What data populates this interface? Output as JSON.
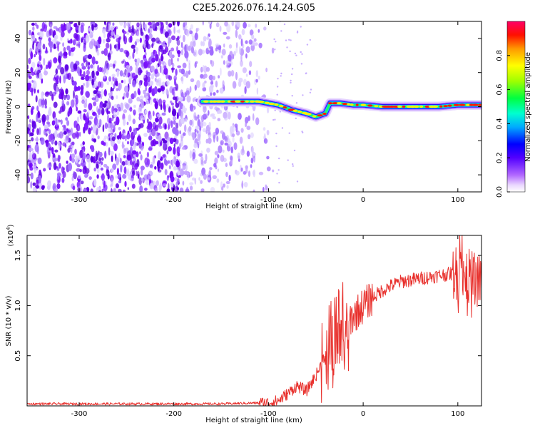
{
  "figure_title": "C2E5.2026.076.14.24.G05",
  "colors": {
    "snr_line": "#e8302c",
    "scatter_purple": "#6a00e8",
    "colormap": [
      "#ff00ff",
      "#7f00ff",
      "#0000ff",
      "#00c8ff",
      "#00ff7f",
      "#7fff00",
      "#ffff00",
      "#ff7f00",
      "#ff0000",
      "#ff0066"
    ]
  },
  "chart_data": [
    {
      "id": "spectrogram",
      "type": "heatmap",
      "title": "C2E5.2026.076.14.24.G05",
      "xlabel": "Height of straight line (km)",
      "ylabel": "Frequency (Hz)",
      "xlim": [
        -355,
        125
      ],
      "ylim": [
        -50,
        50
      ],
      "xticks": [
        -300,
        -200,
        -100,
        0,
        100
      ],
      "xtick_labels": [
        "-300",
        "-200",
        "-100",
        "0",
        "100"
      ],
      "yticks": [
        -40,
        -20,
        0,
        20,
        40
      ],
      "ytick_labels": [
        "-40",
        "-20",
        "0",
        "20",
        "40"
      ],
      "noise_region_x": [
        -355,
        -95
      ],
      "signal_ridge": {
        "x": [
          -170,
          -150,
          -130,
          -110,
          -90,
          -75,
          -60,
          -50,
          -40,
          -35,
          -25,
          -10,
          0,
          20,
          50,
          80,
          100,
          125
        ],
        "freq": [
          3,
          3,
          3,
          3,
          1,
          -2,
          -4,
          -6,
          -4,
          2,
          2,
          1,
          1,
          0,
          0,
          0,
          1,
          1
        ]
      },
      "colorbar": {
        "label": "Normalized spectral amplitude",
        "range": [
          0,
          1
        ],
        "ticks": [
          0.0,
          0.2,
          0.4,
          0.6,
          0.8
        ],
        "tick_labels": [
          "0.0",
          "0.2",
          "0.4",
          "0.6",
          "0.8"
        ]
      }
    },
    {
      "id": "snr",
      "type": "line",
      "xlabel": "Height of straight line (km)",
      "ylabel": "SNR (10 * v/v)",
      "scale_label": "(x10",
      "scale_exponent": "4",
      "xlim": [
        -355,
        125
      ],
      "ylim": [
        0,
        1.7
      ],
      "xticks": [
        -300,
        -200,
        -100,
        0,
        100
      ],
      "xtick_labels": [
        "-300",
        "-200",
        "-100",
        "0",
        "100"
      ],
      "yticks": [
        0.5,
        1.0,
        1.5
      ],
      "ytick_labels": [
        "0.5",
        "1.0",
        "1.5"
      ],
      "series": [
        {
          "name": "SNR",
          "x": [
            -355,
            -300,
            -250,
            -200,
            -150,
            -110,
            -100,
            -90,
            -80,
            -70,
            -60,
            -50,
            -40,
            -30,
            -20,
            -10,
            0,
            10,
            20,
            30,
            40,
            60,
            80,
            100,
            110,
            125
          ],
          "y": [
            0.02,
            0.02,
            0.02,
            0.02,
            0.02,
            0.03,
            0.03,
            0.05,
            0.12,
            0.2,
            0.15,
            0.3,
            0.5,
            0.7,
            0.8,
            0.9,
            1.0,
            1.08,
            1.15,
            1.2,
            1.24,
            1.27,
            1.3,
            1.33,
            1.3,
            1.24
          ]
        }
      ]
    }
  ]
}
